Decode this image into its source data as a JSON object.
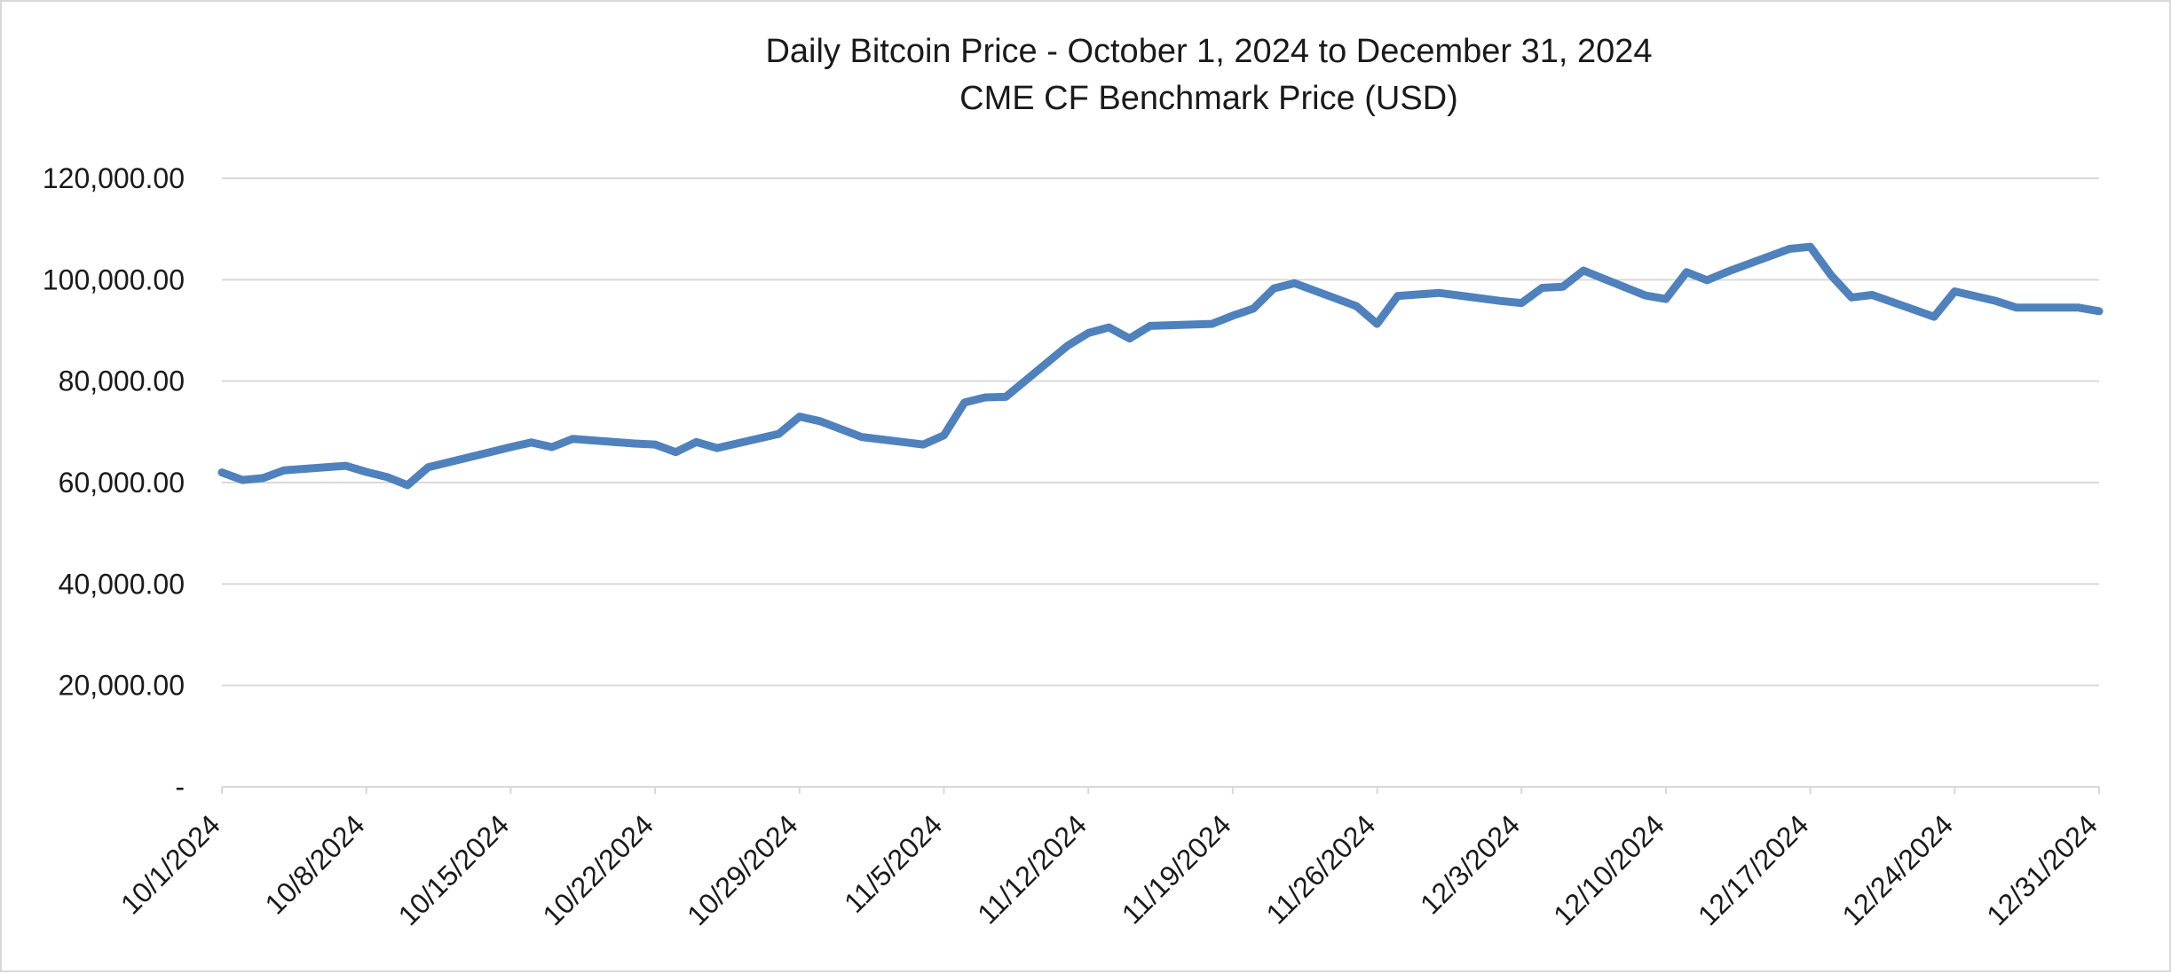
{
  "chart_data": {
    "type": "line",
    "title": "Daily Bitcoin Price - October 1, 2024 to December 31, 2024",
    "subtitle": "CME CF Benchmark Price (USD)",
    "xlabel": "",
    "ylabel": "",
    "ylim": [
      0,
      120000
    ],
    "yticks": [
      {
        "value": 0,
        "label": "-"
      },
      {
        "value": 20000,
        "label": "20,000.00"
      },
      {
        "value": 40000,
        "label": "40,000.00"
      },
      {
        "value": 60000,
        "label": "60,000.00"
      },
      {
        "value": 80000,
        "label": "80,000.00"
      },
      {
        "value": 100000,
        "label": "100,000.00"
      },
      {
        "value": 120000,
        "label": "120,000.00"
      }
    ],
    "xlim": [
      "2024-10-01",
      "2024-12-31"
    ],
    "xticks": [
      {
        "date": "2024-10-01",
        "label": "10/1/2024"
      },
      {
        "date": "2024-10-08",
        "label": "10/8/2024"
      },
      {
        "date": "2024-10-15",
        "label": "10/15/2024"
      },
      {
        "date": "2024-10-22",
        "label": "10/22/2024"
      },
      {
        "date": "2024-10-29",
        "label": "10/29/2024"
      },
      {
        "date": "2024-11-05",
        "label": "11/5/2024"
      },
      {
        "date": "2024-11-12",
        "label": "11/12/2024"
      },
      {
        "date": "2024-11-19",
        "label": "11/19/2024"
      },
      {
        "date": "2024-11-26",
        "label": "11/26/2024"
      },
      {
        "date": "2024-12-03",
        "label": "12/3/2024"
      },
      {
        "date": "2024-12-10",
        "label": "12/10/2024"
      },
      {
        "date": "2024-12-17",
        "label": "12/17/2024"
      },
      {
        "date": "2024-12-24",
        "label": "12/24/2024"
      },
      {
        "date": "2024-12-31",
        "label": "12/31/2024"
      }
    ],
    "grid": true,
    "legend": "none",
    "series": [
      {
        "color": "#4f81bd",
        "points": [
          {
            "x": "2024-10-01",
            "y": 62000
          },
          {
            "x": "2024-10-02",
            "y": 60500
          },
          {
            "x": "2024-10-03",
            "y": 60900
          },
          {
            "x": "2024-10-04",
            "y": 62400
          },
          {
            "x": "2024-10-07",
            "y": 63300
          },
          {
            "x": "2024-10-08",
            "y": 62100
          },
          {
            "x": "2024-10-09",
            "y": 61100
          },
          {
            "x": "2024-10-10",
            "y": 59500
          },
          {
            "x": "2024-10-11",
            "y": 63000
          },
          {
            "x": "2024-10-14",
            "y": 66000
          },
          {
            "x": "2024-10-15",
            "y": 67000
          },
          {
            "x": "2024-10-16",
            "y": 67900
          },
          {
            "x": "2024-10-17",
            "y": 67000
          },
          {
            "x": "2024-10-18",
            "y": 68600
          },
          {
            "x": "2024-10-21",
            "y": 67700
          },
          {
            "x": "2024-10-22",
            "y": 67500
          },
          {
            "x": "2024-10-23",
            "y": 66000
          },
          {
            "x": "2024-10-24",
            "y": 68000
          },
          {
            "x": "2024-10-25",
            "y": 66800
          },
          {
            "x": "2024-10-28",
            "y": 69600
          },
          {
            "x": "2024-10-29",
            "y": 73000
          },
          {
            "x": "2024-10-30",
            "y": 72100
          },
          {
            "x": "2024-11-01",
            "y": 69000
          },
          {
            "x": "2024-11-04",
            "y": 67500
          },
          {
            "x": "2024-11-05",
            "y": 69300
          },
          {
            "x": "2024-11-06",
            "y": 75800
          },
          {
            "x": "2024-11-07",
            "y": 76800
          },
          {
            "x": "2024-11-08",
            "y": 76900
          },
          {
            "x": "2024-11-11",
            "y": 87000
          },
          {
            "x": "2024-11-12",
            "y": 89500
          },
          {
            "x": "2024-11-13",
            "y": 90600
          },
          {
            "x": "2024-11-14",
            "y": 88400
          },
          {
            "x": "2024-11-15",
            "y": 90900
          },
          {
            "x": "2024-11-18",
            "y": 91300
          },
          {
            "x": "2024-11-19",
            "y": 92900
          },
          {
            "x": "2024-11-20",
            "y": 94300
          },
          {
            "x": "2024-11-21",
            "y": 98300
          },
          {
            "x": "2024-11-22",
            "y": 99300
          },
          {
            "x": "2024-11-25",
            "y": 94800
          },
          {
            "x": "2024-11-26",
            "y": 91300
          },
          {
            "x": "2024-11-27",
            "y": 96800
          },
          {
            "x": "2024-11-29",
            "y": 97400
          },
          {
            "x": "2024-12-02",
            "y": 95800
          },
          {
            "x": "2024-12-03",
            "y": 95400
          },
          {
            "x": "2024-12-04",
            "y": 98400
          },
          {
            "x": "2024-12-05",
            "y": 98600
          },
          {
            "x": "2024-12-06",
            "y": 101800
          },
          {
            "x": "2024-12-09",
            "y": 96900
          },
          {
            "x": "2024-12-10",
            "y": 96200
          },
          {
            "x": "2024-12-11",
            "y": 101500
          },
          {
            "x": "2024-12-12",
            "y": 99900
          },
          {
            "x": "2024-12-13",
            "y": 101600
          },
          {
            "x": "2024-12-16",
            "y": 106100
          },
          {
            "x": "2024-12-17",
            "y": 106500
          },
          {
            "x": "2024-12-18",
            "y": 100900
          },
          {
            "x": "2024-12-19",
            "y": 96500
          },
          {
            "x": "2024-12-20",
            "y": 97000
          },
          {
            "x": "2024-12-23",
            "y": 92700
          },
          {
            "x": "2024-12-24",
            "y": 97700
          },
          {
            "x": "2024-12-26",
            "y": 95800
          },
          {
            "x": "2024-12-27",
            "y": 94500
          },
          {
            "x": "2024-12-30",
            "y": 94500
          },
          {
            "x": "2024-12-31",
            "y": 93800
          }
        ]
      }
    ]
  }
}
